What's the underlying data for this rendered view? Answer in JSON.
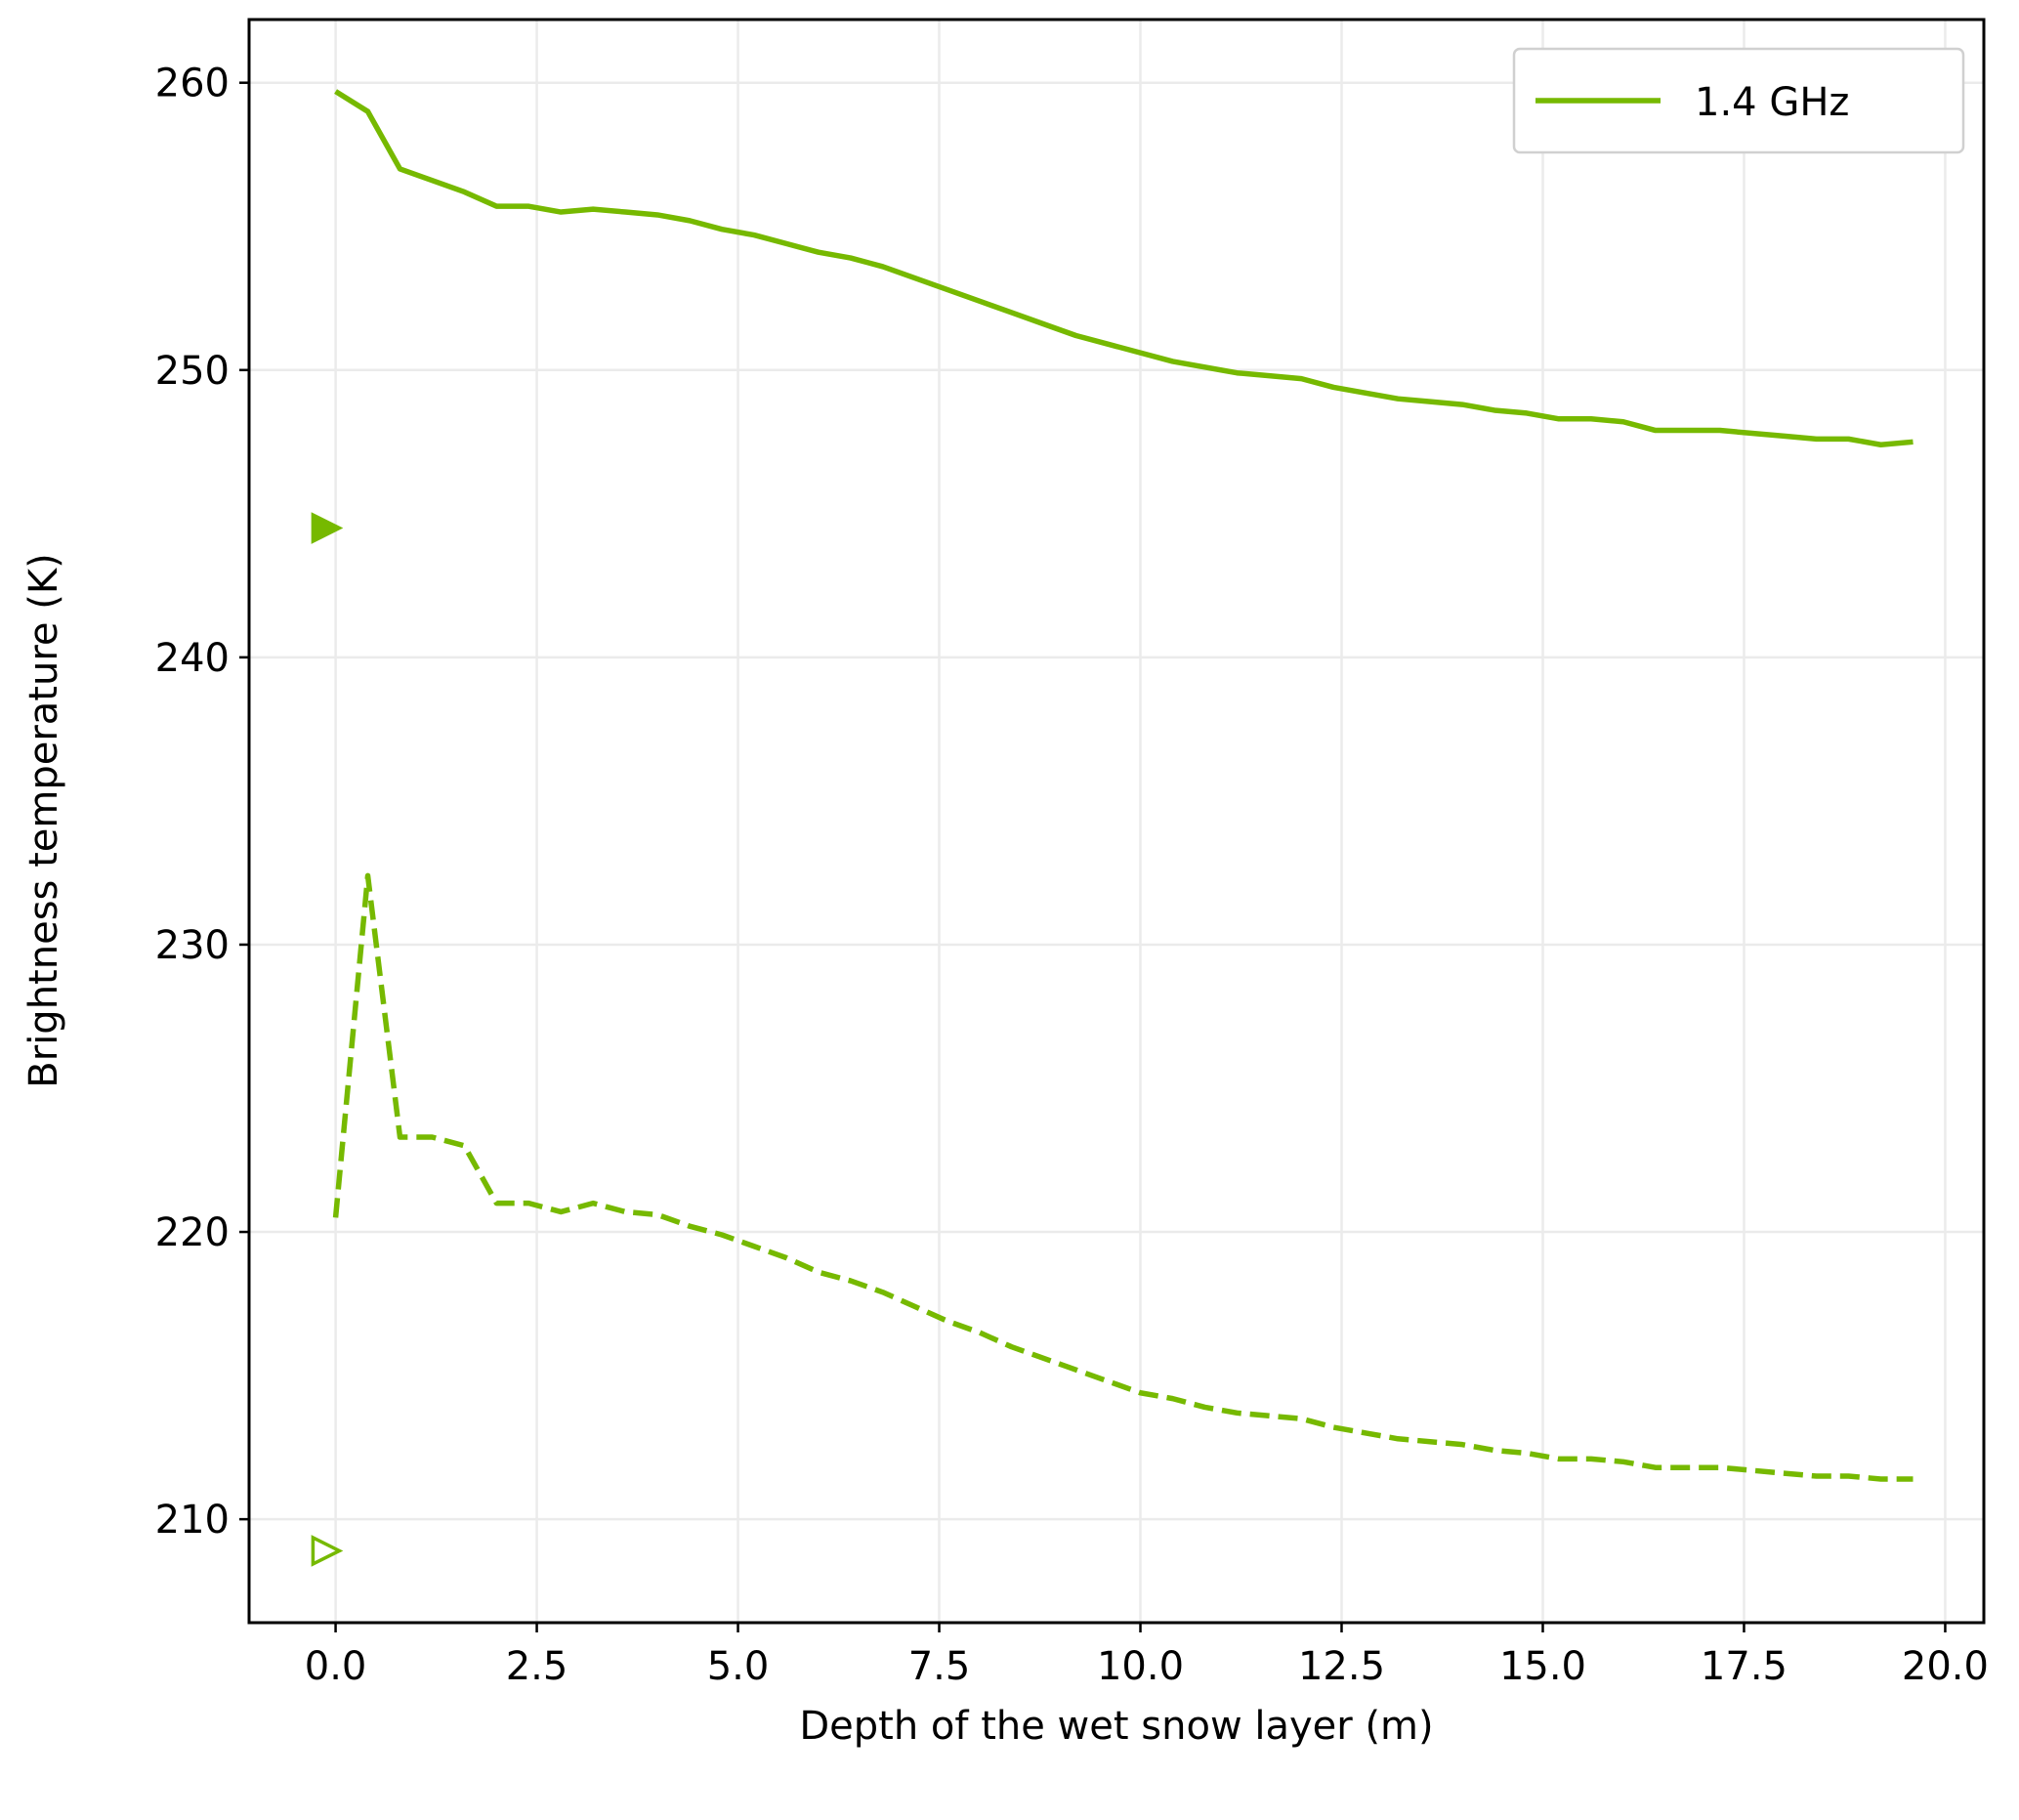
{
  "chart_data": {
    "type": "line",
    "xlabel": "Depth of the wet snow layer (m)",
    "ylabel": "Brightness temperature (K)",
    "x": [
      0,
      0.4,
      0.8,
      1.2,
      1.6,
      2.0,
      2.4,
      2.8,
      3.2,
      3.6,
      4.0,
      4.4,
      4.8,
      5.2,
      5.6,
      6.0,
      6.4,
      6.8,
      7.2,
      7.6,
      8.0,
      8.4,
      8.8,
      9.2,
      9.6,
      10.0,
      10.4,
      10.8,
      11.2,
      11.6,
      12.0,
      12.4,
      12.8,
      13.2,
      13.6,
      14.0,
      14.4,
      14.8,
      15.2,
      15.6,
      16.0,
      16.4,
      16.8,
      17.2,
      17.6,
      18.0,
      18.4,
      18.8,
      19.2,
      19.6
    ],
    "series": [
      {
        "name": "1.4 GHz",
        "color": "#76b900",
        "linestyle": "solid",
        "values": [
          259.7,
          259,
          257,
          256.6,
          256.2,
          255.7,
          255.7,
          255.5,
          255.6,
          255.5,
          255.4,
          255.2,
          254.9,
          254.7,
          254.4,
          254.1,
          253.9,
          253.6,
          253.2,
          252.8,
          252.4,
          252.0,
          251.6,
          251.2,
          250.9,
          250.6,
          250.3,
          250.1,
          249.9,
          249.8,
          249.7,
          249.4,
          249.2,
          249.0,
          248.9,
          248.8,
          248.6,
          248.5,
          248.3,
          248.3,
          248.2,
          247.9,
          247.9,
          247.9,
          247.8,
          247.7,
          247.6,
          247.6,
          247.4,
          247.5
        ]
      },
      {
        "color": "#76b900",
        "linestyle": "dashed",
        "values": [
          220.5,
          232.4,
          223.3,
          223.3,
          223.0,
          221.0,
          221.0,
          220.7,
          221.0,
          220.7,
          220.6,
          220.2,
          219.9,
          219.5,
          219.1,
          218.6,
          218.3,
          217.9,
          217.4,
          216.9,
          216.5,
          216.0,
          215.6,
          215.2,
          214.8,
          214.4,
          214.2,
          213.9,
          213.7,
          213.6,
          213.5,
          213.2,
          213.0,
          212.8,
          212.7,
          212.6,
          212.4,
          212.3,
          212.1,
          212.1,
          212.0,
          211.8,
          211.8,
          211.8,
          211.7,
          211.6,
          211.5,
          211.5,
          211.4,
          211.4
        ]
      }
    ],
    "points": [
      {
        "x": -0.15,
        "y": 244.5,
        "color": "#76b900",
        "filled": true
      },
      {
        "x": -0.15,
        "y": 208.9,
        "color": "#76b900",
        "filled": false
      }
    ],
    "xlim": [
      -1.075,
      20.48
    ],
    "ylim": [
      206.4,
      262.2
    ],
    "xticks": [
      {
        "value": 0,
        "label": "0.0"
      },
      {
        "value": 2.5,
        "label": "2.5"
      },
      {
        "value": 5,
        "label": "5.0"
      },
      {
        "value": 7.5,
        "label": "7.5"
      },
      {
        "value": 10,
        "label": "10.0"
      },
      {
        "value": 12.5,
        "label": "12.5"
      },
      {
        "value": 15,
        "label": "15.0"
      },
      {
        "value": 17.5,
        "label": "17.5"
      },
      {
        "value": 20,
        "label": "20.0"
      }
    ],
    "yticks": [
      210,
      220,
      230,
      240,
      250,
      260
    ],
    "grid": true,
    "legend": "upper right"
  }
}
